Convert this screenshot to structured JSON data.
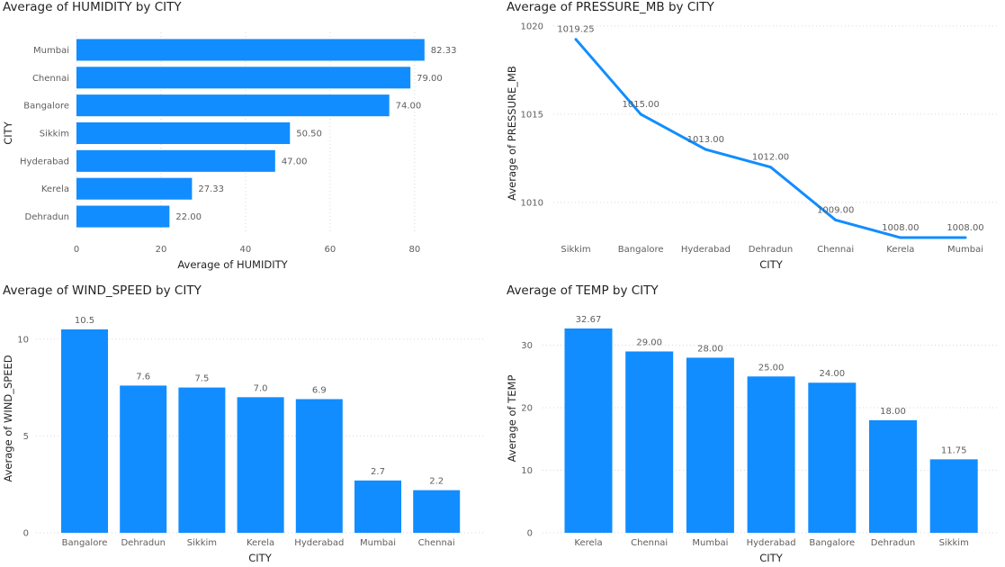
{
  "colors": {
    "series": "#118DFF",
    "grid": "#D9D9D9",
    "text": "#605E5C"
  },
  "chart_data": [
    {
      "id": "humidity",
      "type": "bar",
      "orientation": "horizontal",
      "title": "Average of HUMIDITY by CITY",
      "xlabel": "Average of HUMIDITY",
      "ylabel": "CITY",
      "categories": [
        "Mumbai",
        "Chennai",
        "Bangalore",
        "Sikkim",
        "Hyderabad",
        "Kerela",
        "Dehradun"
      ],
      "values": [
        82.33,
        79.0,
        74.0,
        50.5,
        47.0,
        27.33,
        22.0
      ],
      "data_labels": [
        "82.33",
        "79.00",
        "74.00",
        "50.50",
        "47.00",
        "27.33",
        "22.00"
      ],
      "ticks": [
        "0",
        "20",
        "40",
        "60",
        "80"
      ],
      "xlim": [
        0,
        84.5
      ],
      "grid": true
    },
    {
      "id": "pressure",
      "type": "line",
      "title": "Average of PRESSURE_MB by CITY",
      "xlabel": "CITY",
      "ylabel": "Average of PRESSURE_MB",
      "categories": [
        "Sikkim",
        "Bangalore",
        "Hyderabad",
        "Dehradun",
        "Chennai",
        "Kerela",
        "Mumbai"
      ],
      "values": [
        1019.25,
        1015.0,
        1013.0,
        1012.0,
        1009.0,
        1008.0,
        1008.0
      ],
      "data_labels": [
        "1019.25",
        "1015.00",
        "1013.00",
        "1012.00",
        "1009.00",
        "1008.00",
        "1008.00"
      ],
      "ticks": [
        "1010",
        "1015",
        "1020"
      ],
      "ylim": [
        1007.9,
        1020
      ],
      "grid": true
    },
    {
      "id": "wind",
      "type": "bar",
      "orientation": "vertical",
      "title": "Average of WIND_SPEED by CITY",
      "xlabel": "CITY",
      "ylabel": "Average of WIND_SPEED",
      "categories": [
        "Bangalore",
        "Dehradun",
        "Sikkim",
        "Kerela",
        "Hyderabad",
        "Mumbai",
        "Chennai"
      ],
      "values": [
        10.5,
        7.6,
        7.5,
        7.0,
        6.9,
        2.7,
        2.2
      ],
      "data_labels": [
        "10.5",
        "7.6",
        "7.5",
        "7.0",
        "6.9",
        "2.7",
        "2.2"
      ],
      "ticks": [
        "0",
        "5",
        "10"
      ],
      "ylim": [
        0,
        10.5
      ],
      "grid": true
    },
    {
      "id": "temp",
      "type": "bar",
      "orientation": "vertical",
      "title": "Average of TEMP by CITY",
      "xlabel": "CITY",
      "ylabel": "Average of TEMP",
      "categories": [
        "Kerela",
        "Chennai",
        "Mumbai",
        "Hyderabad",
        "Bangalore",
        "Dehradun",
        "Sikkim"
      ],
      "values": [
        32.67,
        29.0,
        28.0,
        25.0,
        24.0,
        18.0,
        11.75
      ],
      "data_labels": [
        "32.67",
        "29.00",
        "28.00",
        "25.00",
        "24.00",
        "18.00",
        "11.75"
      ],
      "ticks": [
        "0",
        "10",
        "20",
        "30"
      ],
      "ylim": [
        0,
        32.67
      ],
      "grid": true
    }
  ]
}
